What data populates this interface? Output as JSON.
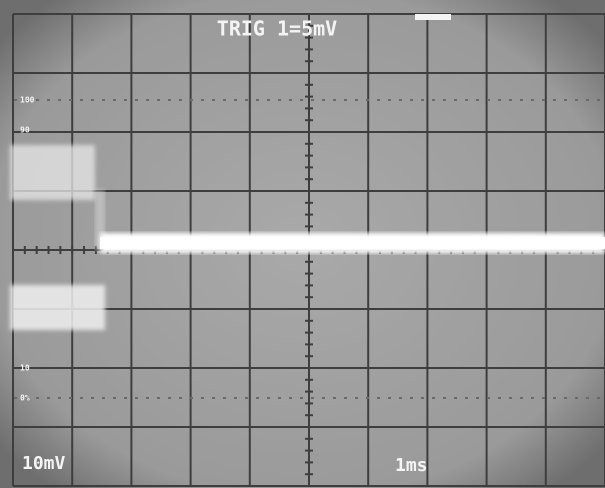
{
  "screen": {
    "trigger_label": "TRIG 1=5mV",
    "volts_per_div": "10mV",
    "time_per_div": "1ms",
    "level_labels": [
      "100",
      "90",
      "10",
      "0%"
    ]
  }
}
